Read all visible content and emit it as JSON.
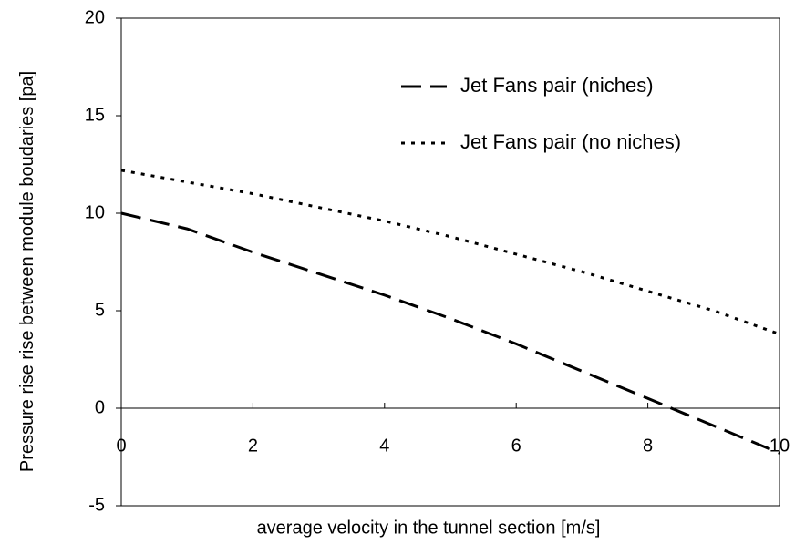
{
  "chart_data": {
    "type": "line",
    "x_label": "average velocity in the tunnel section [m/s]",
    "y_label": "Pressure rise rise between module boudaries [pa]",
    "x": [
      0,
      1,
      2,
      3,
      4,
      5,
      6,
      7,
      8,
      9,
      10
    ],
    "series": [
      {
        "name": "Jet Fans pair (niches)",
        "color": "#000000",
        "dash": "long",
        "values": [
          10,
          9.2,
          8,
          6.9,
          5.8,
          4.6,
          3.3,
          1.9,
          0.5,
          -0.9,
          -2.3
        ]
      },
      {
        "name": "Jet Fans pair (no niches)",
        "color": "#000000",
        "dash": "dotted",
        "values": [
          12.2,
          11.6,
          11,
          10.3,
          9.6,
          8.8,
          7.9,
          7.0,
          6.0,
          5.0,
          3.8
        ]
      }
    ],
    "xlim": [
      0,
      10
    ],
    "xticks": [
      0,
      2,
      4,
      6,
      8,
      10
    ],
    "ylim": [
      -5,
      20
    ],
    "yticks": [
      -5,
      0,
      5,
      10,
      15,
      20
    ],
    "legend": "upper-right"
  }
}
